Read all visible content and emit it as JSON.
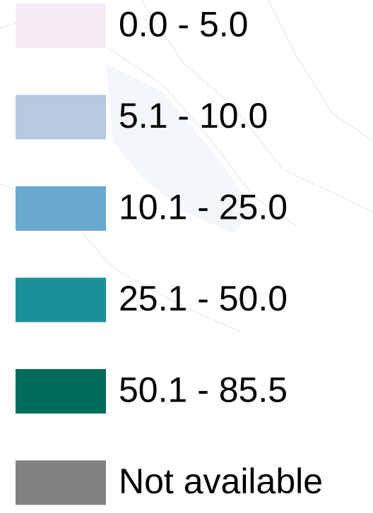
{
  "legend": {
    "items": [
      {
        "label": "0.0 - 5.0",
        "color": "#f4ebf4"
      },
      {
        "label": "5.1 - 10.0",
        "color": "#bac7e1"
      },
      {
        "label": "10.1 - 25.0",
        "color": "#67a9cf"
      },
      {
        "label": "25.1 - 50.0",
        "color": "#1c9099"
      },
      {
        "label": "50.1 - 85.5",
        "color": "#016c59"
      },
      {
        "label": "Not available",
        "color": "#828282"
      }
    ]
  }
}
